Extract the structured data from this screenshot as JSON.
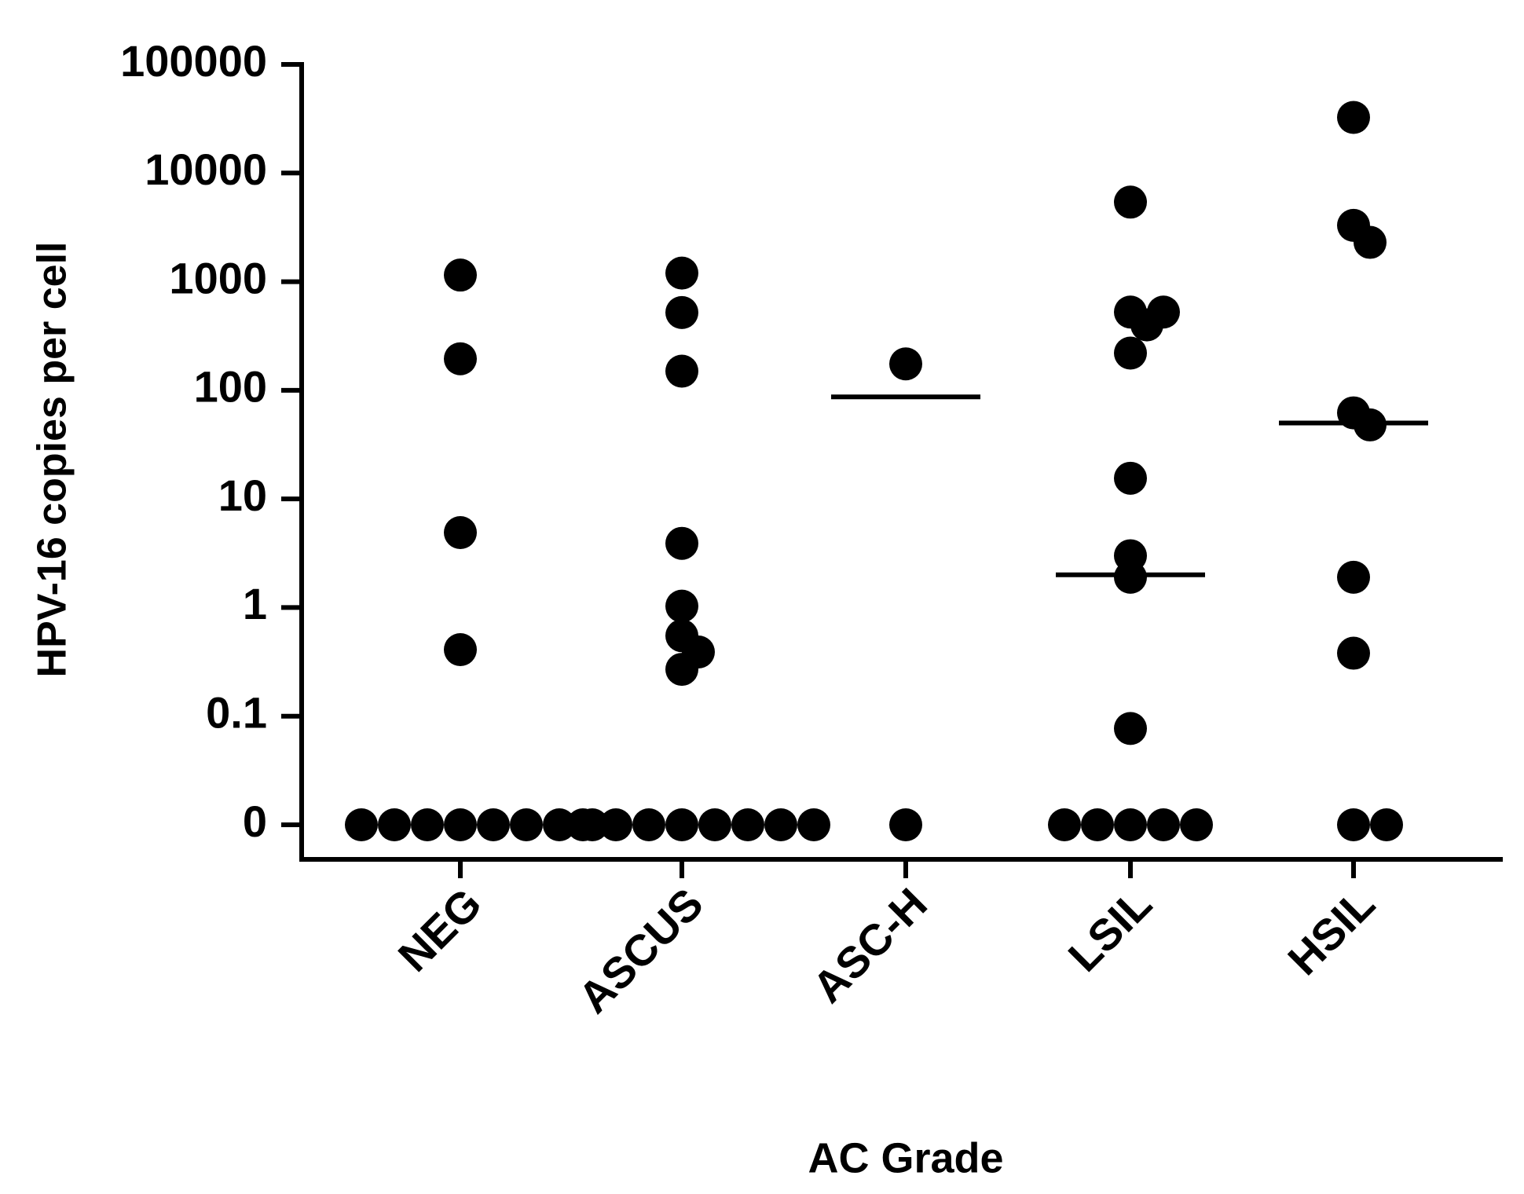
{
  "chart_data": {
    "type": "dot",
    "x_label": "AC Grade",
    "y_label": "HPV-16 copies per cell",
    "y_scale": "log",
    "ylim": [
      0,
      100000
    ],
    "yticks": [
      0,
      0.1,
      1,
      10,
      100,
      1000,
      10000,
      100000
    ],
    "color": "#000000",
    "categories": [
      "NEG",
      "ASCUS",
      "ASC-H",
      "LSIL",
      "HSIL"
    ],
    "values": [
      [
        1150,
        195,
        4.9,
        0.41,
        0,
        0,
        0,
        0,
        0,
        0,
        0,
        0
      ],
      [
        1200,
        520,
        150,
        3.9,
        1.03,
        0.55,
        0.39,
        0.27,
        0,
        0,
        0,
        0,
        0,
        0,
        0,
        0
      ],
      [
        175,
        0
      ],
      [
        5400,
        525,
        525,
        400,
        220,
        15.5,
        3.0,
        1.9,
        0.077,
        0,
        0,
        0,
        0,
        0
      ],
      [
        32500,
        3300,
        2300,
        62,
        48,
        1.9,
        0.38,
        0,
        0
      ]
    ],
    "medians": [
      null,
      null,
      87,
      2,
      50
    ]
  }
}
